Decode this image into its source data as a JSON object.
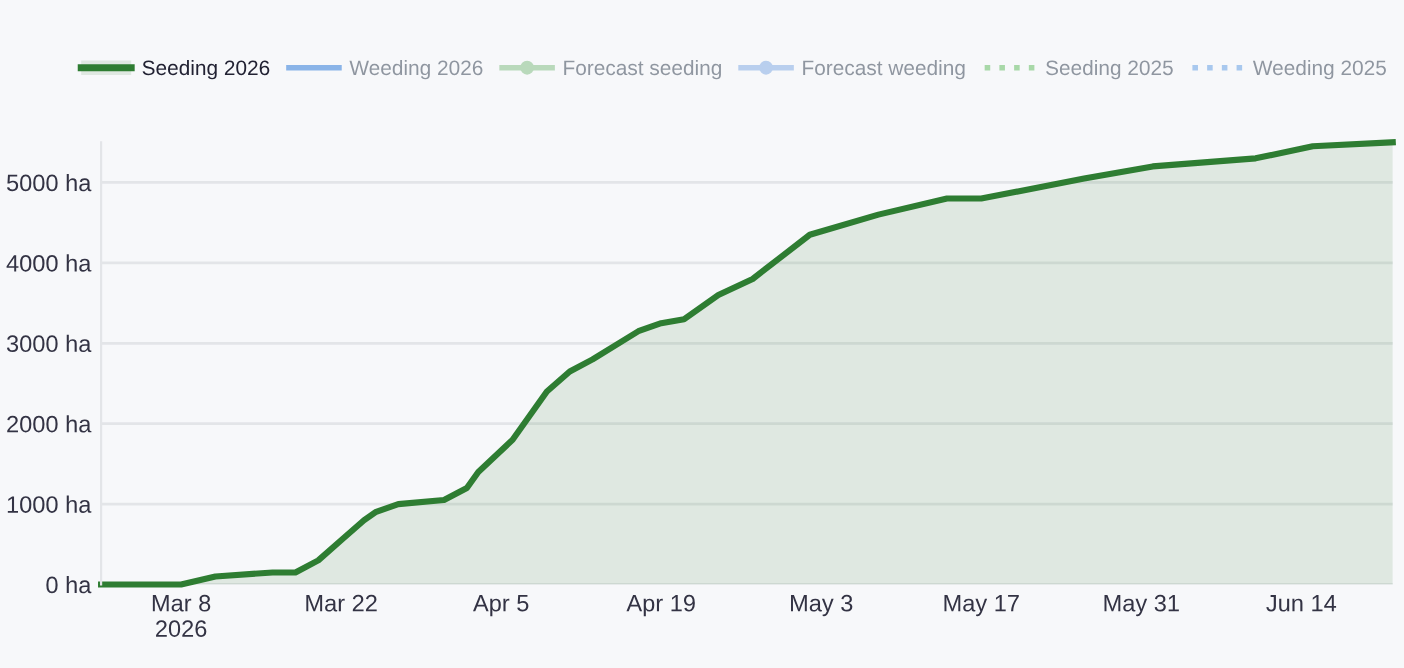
{
  "chart_data": {
    "type": "area",
    "x": [
      "2026-03-01",
      "2026-03-08",
      "2026-03-11",
      "2026-03-16",
      "2026-03-18",
      "2026-03-20",
      "2026-03-22",
      "2026-03-24",
      "2026-03-25",
      "2026-03-27",
      "2026-03-31",
      "2026-04-02",
      "2026-04-03",
      "2026-04-06",
      "2026-04-09",
      "2026-04-11",
      "2026-04-13",
      "2026-04-17",
      "2026-04-19",
      "2026-04-21",
      "2026-04-24",
      "2026-04-27",
      "2026-05-02",
      "2026-05-08",
      "2026-05-14",
      "2026-05-17",
      "2026-05-26",
      "2026-06-01",
      "2026-06-10",
      "2026-06-15",
      "2026-06-22"
    ],
    "series": [
      {
        "name": "Seeding 2026",
        "color": "#2e7d32",
        "values": [
          0,
          0,
          100,
          150,
          150,
          300,
          550,
          800,
          900,
          1000,
          1050,
          1200,
          1400,
          1800,
          2400,
          2650,
          2800,
          3150,
          3250,
          3300,
          3600,
          3800,
          4350,
          4600,
          4800,
          4800,
          5050,
          5200,
          5300,
          5450,
          5500
        ]
      },
      {
        "name": "Weeding 2026",
        "type": "line",
        "color": "#8ab4e8",
        "line_style": "solid",
        "values": [
          null,
          null,
          null,
          null,
          null,
          null,
          null,
          null,
          null,
          null,
          null,
          null,
          null,
          null,
          null,
          null,
          null,
          null,
          null,
          null,
          null,
          null,
          null,
          null,
          null,
          null,
          null,
          null,
          null,
          null,
          null
        ]
      },
      {
        "name": "Forecast seeding",
        "type": "line",
        "color": "#b9d9bb",
        "line_style": "solid",
        "marker": "circle",
        "values": [
          null,
          null,
          null,
          null,
          null,
          null,
          null,
          null,
          null,
          null,
          null,
          null,
          null,
          null,
          null,
          null,
          null,
          null,
          null,
          null,
          null,
          null,
          null,
          null,
          null,
          null,
          null,
          null,
          null,
          null,
          null
        ]
      },
      {
        "name": "Forecast weeding",
        "type": "line",
        "color": "#b9cfee",
        "line_style": "solid",
        "marker": "circle",
        "values": [
          null,
          null,
          null,
          null,
          null,
          null,
          null,
          null,
          null,
          null,
          null,
          null,
          null,
          null,
          null,
          null,
          null,
          null,
          null,
          null,
          null,
          null,
          null,
          null,
          null,
          null,
          null,
          null,
          null,
          null,
          null
        ]
      },
      {
        "name": "Seeding 2025",
        "type": "line",
        "color": "#a8d8a8",
        "line_style": "dotted",
        "values": [
          null,
          null,
          null,
          null,
          null,
          null,
          null,
          null,
          null,
          null,
          null,
          null,
          null,
          null,
          null,
          null,
          null,
          null,
          null,
          null,
          null,
          null,
          null,
          null,
          null,
          null,
          null,
          null,
          null,
          null,
          null
        ]
      },
      {
        "name": "Weeding 2025",
        "type": "line",
        "color": "#a8c8ee",
        "line_style": "dotted",
        "values": [
          null,
          null,
          null,
          null,
          null,
          null,
          null,
          null,
          null,
          null,
          null,
          null,
          null,
          null,
          null,
          null,
          null,
          null,
          null,
          null,
          null,
          null,
          null,
          null,
          null,
          null,
          null,
          null,
          null,
          null,
          null
        ]
      }
    ],
    "xlim": [
      "2026-03-01",
      "2026-06-22"
    ],
    "xticks": [
      {
        "value": "2026-03-08",
        "label": "Mar 8\n2026"
      },
      {
        "value": "2026-03-22",
        "label": "Mar 22"
      },
      {
        "value": "2026-04-05",
        "label": "Apr 5"
      },
      {
        "value": "2026-04-19",
        "label": "Apr 19"
      },
      {
        "value": "2026-05-03",
        "label": "May 3"
      },
      {
        "value": "2026-05-17",
        "label": "May 17"
      },
      {
        "value": "2026-05-31",
        "label": "May 31"
      },
      {
        "value": "2026-06-14",
        "label": "Jun 14"
      }
    ],
    "ylim": [
      0,
      5500
    ],
    "yticks": [
      {
        "value": 0,
        "label": "0 ha"
      },
      {
        "value": 1000,
        "label": "1000 ha"
      },
      {
        "value": 2000,
        "label": "2000 ha"
      },
      {
        "value": 3000,
        "label": "3000 ha"
      },
      {
        "value": 4000,
        "label": "4000 ha"
      },
      {
        "value": 5000,
        "label": "5000 ha"
      }
    ],
    "grid": "y",
    "legend": "top"
  }
}
